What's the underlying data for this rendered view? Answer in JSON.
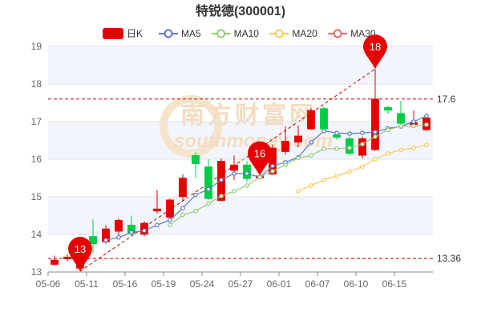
{
  "chart_data": {
    "type": "candlestick",
    "title": "特锐德(300001)",
    "watermark": {
      "line1": "南方财富网",
      "line2": "southmoney.com"
    },
    "legend": [
      {
        "label": "日K",
        "color": "#e60000",
        "kind": "candle"
      },
      {
        "label": "MA5",
        "color": "#5a78c8",
        "kind": "line"
      },
      {
        "label": "MA10",
        "color": "#91cc75",
        "kind": "line"
      },
      {
        "label": "MA20",
        "color": "#fac858",
        "kind": "line"
      },
      {
        "label": "MA30",
        "color": "#ee6666",
        "kind": "line"
      }
    ],
    "colors": {
      "up": "#e60000",
      "down": "#00cc44",
      "pin": "#e60000",
      "ref": "#c00000",
      "grid": "#dde3ee",
      "band": "#f2f5fb"
    },
    "x_tick_labels": [
      "05-06",
      "05-11",
      "05-16",
      "05-19",
      "05-24",
      "05-27",
      "06-01",
      "06-07",
      "06-10",
      "06-15"
    ],
    "y_ticks": [
      13,
      14,
      15,
      16,
      17,
      18,
      19
    ],
    "ylim": [
      13,
      19
    ],
    "candles": [
      {
        "open": 13.2,
        "close": 13.32,
        "low": 13.18,
        "high": 13.44
      },
      {
        "open": 13.35,
        "close": 13.4,
        "low": 13.28,
        "high": 13.48
      },
      {
        "open": 13.1,
        "close": 13.55,
        "low": 13.02,
        "high": 13.6
      },
      {
        "open": 13.95,
        "close": 13.75,
        "low": 13.5,
        "high": 14.4
      },
      {
        "open": 13.8,
        "close": 14.15,
        "low": 13.75,
        "high": 14.25
      },
      {
        "open": 14.08,
        "close": 14.38,
        "low": 13.95,
        "high": 14.42
      },
      {
        "open": 14.25,
        "close": 14.02,
        "low": 13.95,
        "high": 14.5
      },
      {
        "open": 14.0,
        "close": 14.3,
        "low": 13.95,
        "high": 14.35
      },
      {
        "open": 14.62,
        "close": 14.68,
        "low": 14.55,
        "high": 15.18
      },
      {
        "open": 14.45,
        "close": 14.92,
        "low": 14.4,
        "high": 14.95
      },
      {
        "open": 15.0,
        "close": 15.5,
        "low": 14.9,
        "high": 15.6
      },
      {
        "open": 16.1,
        "close": 15.88,
        "low": 15.5,
        "high": 16.18
      },
      {
        "open": 15.8,
        "close": 14.95,
        "low": 14.92,
        "high": 16.0
      },
      {
        "open": 14.9,
        "close": 15.95,
        "low": 14.88,
        "high": 16.02
      },
      {
        "open": 15.7,
        "close": 15.85,
        "low": 15.45,
        "high": 16.1
      },
      {
        "open": 15.85,
        "close": 15.48,
        "low": 15.4,
        "high": 15.95
      },
      {
        "open": 15.5,
        "close": 15.56,
        "low": 15.48,
        "high": 15.62
      },
      {
        "open": 15.6,
        "close": 16.3,
        "low": 15.58,
        "high": 16.4
      },
      {
        "open": 16.2,
        "close": 16.48,
        "low": 16.12,
        "high": 16.88
      },
      {
        "open": 16.45,
        "close": 16.62,
        "low": 16.32,
        "high": 16.9
      },
      {
        "open": 16.8,
        "close": 17.3,
        "low": 16.78,
        "high": 17.35
      },
      {
        "open": 17.35,
        "close": 16.8,
        "low": 16.76,
        "high": 17.4
      },
      {
        "open": 16.65,
        "close": 16.58,
        "low": 16.52,
        "high": 16.7
      },
      {
        "open": 16.55,
        "close": 16.15,
        "low": 16.1,
        "high": 16.6
      },
      {
        "open": 16.1,
        "close": 16.55,
        "low": 16.02,
        "high": 16.6
      },
      {
        "open": 16.25,
        "close": 17.6,
        "low": 16.22,
        "high": 18.4
      },
      {
        "open": 17.38,
        "close": 17.3,
        "low": 17.2,
        "high": 17.42
      },
      {
        "open": 17.22,
        "close": 16.95,
        "low": 16.88,
        "high": 17.55
      },
      {
        "open": 16.92,
        "close": 16.98,
        "low": 16.85,
        "high": 17.3
      },
      {
        "open": 16.78,
        "close": 17.1,
        "low": 16.75,
        "high": 17.15
      }
    ],
    "ma5": [
      null,
      null,
      null,
      null,
      13.85,
      13.92,
      14.05,
      14.1,
      14.25,
      14.38,
      14.7,
      15.05,
      15.2,
      15.45,
      15.62,
      15.62,
      15.52,
      15.82,
      15.92,
      16.05,
      16.45,
      16.75,
      16.7,
      16.68,
      16.7,
      16.72,
      16.82,
      16.87,
      17.0,
      17.15
    ],
    "ma10": [
      null,
      null,
      null,
      null,
      null,
      null,
      null,
      null,
      null,
      14.25,
      14.52,
      14.62,
      14.82,
      15.02,
      15.15,
      15.3,
      15.52,
      15.68,
      15.85,
      16.03,
      16.1,
      16.28,
      16.28,
      16.3,
      16.4,
      16.6,
      16.78,
      16.88,
      16.88,
      16.92
    ],
    "ma20": [
      null,
      null,
      null,
      null,
      null,
      null,
      null,
      null,
      null,
      null,
      null,
      null,
      null,
      null,
      null,
      null,
      null,
      null,
      null,
      15.15,
      15.3,
      15.45,
      15.55,
      15.67,
      15.8,
      16.0,
      16.15,
      16.25,
      16.3,
      16.38
    ],
    "ma30": [],
    "markers": [
      {
        "label": "13",
        "type": "low",
        "index": 2,
        "value": 13.02
      },
      {
        "label": "16",
        "type": "pin",
        "index": 16,
        "value": 15.56
      },
      {
        "label": "18",
        "type": "high",
        "index": 25,
        "value": 18.4
      }
    ],
    "ref_lines": [
      {
        "label": "17.6",
        "value": 17.6
      },
      {
        "label": "13.36",
        "value": 13.36
      }
    ],
    "trend_line": {
      "from": {
        "index": 2,
        "value": 13.02
      },
      "to": {
        "index": 25,
        "value": 18.4
      }
    }
  }
}
